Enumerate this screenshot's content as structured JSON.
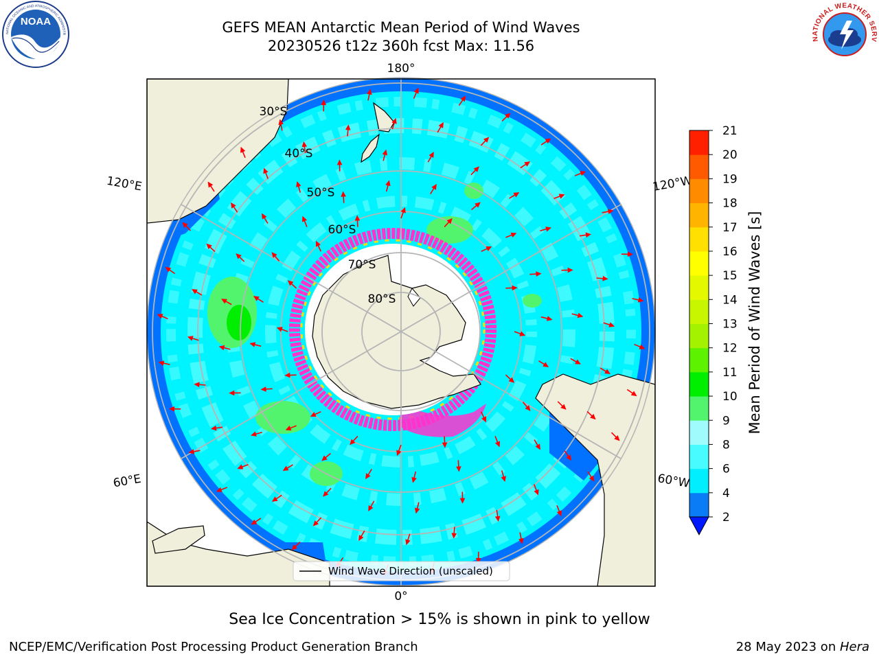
{
  "header": {
    "title_line1": "GEFS MEAN Antarctic Mean Period of Wind Waves",
    "title_line2": "20230526 t12z 360h fcst   Max: 11.56"
  },
  "logos": {
    "left": {
      "icon": "noaa-logo-icon",
      "text": "NOAA",
      "ring_text": "NATIONAL OCEANIC AND ATMOSPHERIC ADMINISTRATION · U.S. DEPARTMENT OF COMMERCE"
    },
    "right": {
      "icon": "nws-logo-icon",
      "ring_text": "NATIONAL WEATHER SERVICE"
    }
  },
  "map": {
    "projection": "south-polar-stereographic",
    "lon_labels": [
      "180°",
      "0°",
      "120°E",
      "120°W",
      "60°E",
      "60°W"
    ],
    "lat_labels": [
      "30°S",
      "40°S",
      "50°S",
      "60°S",
      "70°S",
      "80°S"
    ],
    "legend_label": "Wind Wave Direction (unscaled)",
    "colors": {
      "land": "#efefdc",
      "ocean_cyan": "#00f4ff",
      "ocean_light": "#4dfbff",
      "coast_blue": "#0072ff",
      "green": "#52f46e",
      "ice_pink": "#ff33cc",
      "ice_yellow": "#ffdd00",
      "arrow": "#ff0000",
      "grid": "#b5b5b5"
    }
  },
  "colorbar": {
    "label": "Mean Period of Wind Waves [s]",
    "ticks": [
      "2",
      "4",
      "6",
      "8",
      "9",
      "10",
      "11",
      "12",
      "13",
      "14",
      "15",
      "16",
      "17",
      "18",
      "19",
      "20",
      "21"
    ],
    "colors": [
      "#0a7cf5",
      "#00eefe",
      "#48fbff",
      "#a0fcfc",
      "#52f46e",
      "#00ee00",
      "#5cf200",
      "#a4f200",
      "#c8f500",
      "#e4f800",
      "#ffff00",
      "#ffe000",
      "#ffb400",
      "#ff8c00",
      "#ff5a00",
      "#ff2000"
    ],
    "extend_color": "#0018ff"
  },
  "footer": {
    "caption": "Sea Ice Concentration > 15% is shown in pink to yellow",
    "credit": "NCEP/EMC/Verification Post Processing Product Generation Branch",
    "stamp_prefix": "28 May 2023 on ",
    "stamp_machine": "Hera"
  }
}
